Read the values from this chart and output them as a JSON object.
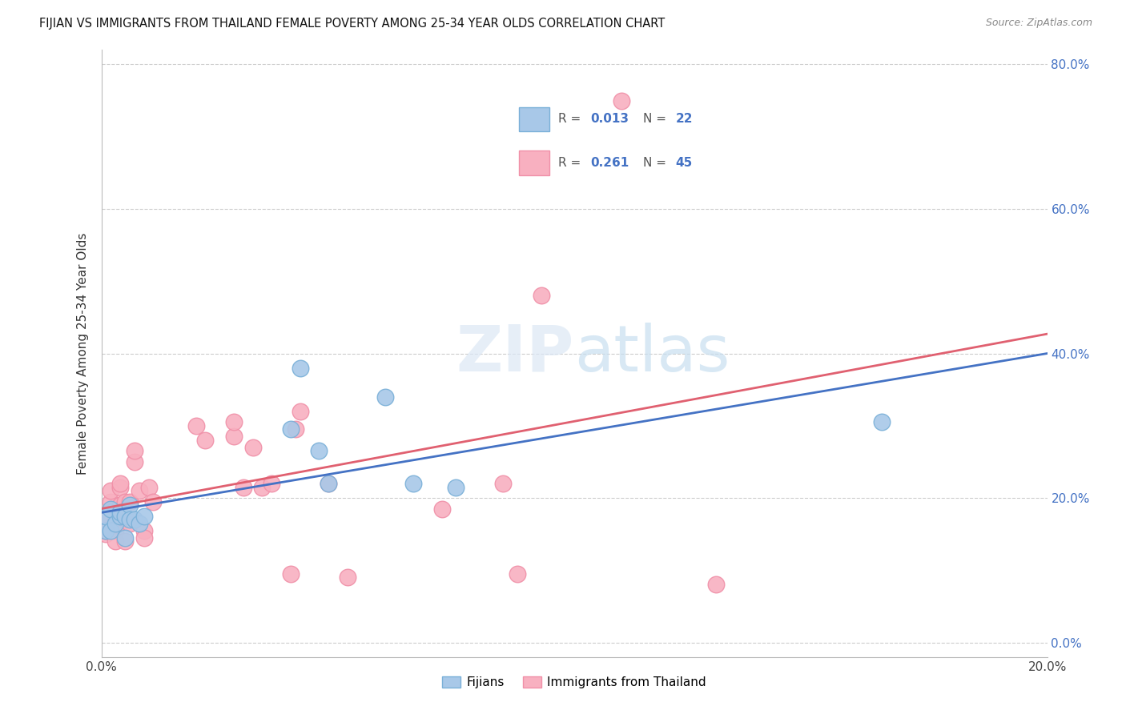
{
  "title": "FIJIAN VS IMMIGRANTS FROM THAILAND FEMALE POVERTY AMONG 25-34 YEAR OLDS CORRELATION CHART",
  "source": "Source: ZipAtlas.com",
  "ylabel": "Female Poverty Among 25-34 Year Olds",
  "fijian_color": "#a8c8e8",
  "fijian_edge_color": "#7ab0d8",
  "thailand_color": "#f8b0c0",
  "thailand_edge_color": "#f090a8",
  "fijian_line_color": "#4472c4",
  "thailand_line_color": "#e06070",
  "R_fijian": "0.013",
  "N_fijian": "22",
  "R_thailand": "0.261",
  "N_thailand": "45",
  "xlim": [
    0.0,
    0.2
  ],
  "ylim": [
    -0.05,
    0.85
  ],
  "plot_ylim": [
    0.0,
    0.8
  ],
  "yticks": [
    0.0,
    0.2,
    0.4,
    0.6,
    0.8
  ],
  "ytick_labels": [
    "0.0%",
    "20.0%",
    "40.0%",
    "60.0%",
    "80.0%"
  ],
  "fijian_x": [
    0.001,
    0.001,
    0.002,
    0.002,
    0.003,
    0.004,
    0.004,
    0.005,
    0.005,
    0.006,
    0.006,
    0.007,
    0.008,
    0.009,
    0.04,
    0.042,
    0.046,
    0.048,
    0.06,
    0.066,
    0.075,
    0.165
  ],
  "fijian_y": [
    0.155,
    0.175,
    0.155,
    0.185,
    0.165,
    0.175,
    0.18,
    0.145,
    0.175,
    0.19,
    0.17,
    0.17,
    0.165,
    0.175,
    0.295,
    0.38,
    0.265,
    0.22,
    0.34,
    0.22,
    0.215,
    0.305
  ],
  "thailand_x": [
    0.001,
    0.001,
    0.001,
    0.002,
    0.002,
    0.002,
    0.003,
    0.003,
    0.003,
    0.003,
    0.003,
    0.004,
    0.004,
    0.004,
    0.005,
    0.005,
    0.005,
    0.006,
    0.006,
    0.007,
    0.007,
    0.008,
    0.009,
    0.009,
    0.01,
    0.011,
    0.02,
    0.022,
    0.028,
    0.028,
    0.03,
    0.032,
    0.034,
    0.036,
    0.04,
    0.041,
    0.042,
    0.048,
    0.052,
    0.072,
    0.085,
    0.088,
    0.093,
    0.11,
    0.13
  ],
  "thailand_y": [
    0.15,
    0.17,
    0.155,
    0.185,
    0.195,
    0.21,
    0.17,
    0.155,
    0.14,
    0.165,
    0.185,
    0.215,
    0.22,
    0.19,
    0.17,
    0.195,
    0.14,
    0.165,
    0.195,
    0.25,
    0.265,
    0.21,
    0.155,
    0.145,
    0.215,
    0.195,
    0.3,
    0.28,
    0.285,
    0.305,
    0.215,
    0.27,
    0.215,
    0.22,
    0.095,
    0.295,
    0.32,
    0.22,
    0.09,
    0.185,
    0.22,
    0.095,
    0.48,
    0.75,
    0.08
  ],
  "watermark": "ZIPatlas"
}
